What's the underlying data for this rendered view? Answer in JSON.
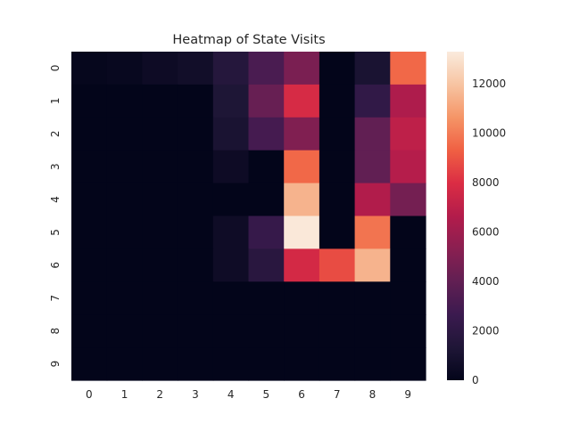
{
  "chart_data": {
    "type": "heatmap",
    "title": "Heatmap of State Visits",
    "xlabel": "",
    "ylabel": "",
    "x_categories": [
      "0",
      "1",
      "2",
      "3",
      "4",
      "5",
      "6",
      "7",
      "8",
      "9"
    ],
    "y_categories": [
      "0",
      "1",
      "2",
      "3",
      "4",
      "5",
      "6",
      "7",
      "8",
      "9"
    ],
    "values": [
      [
        150,
        250,
        500,
        700,
        1600,
        3200,
        4800,
        0,
        1100,
        9500
      ],
      [
        0,
        0,
        0,
        0,
        1300,
        4200,
        7800,
        0,
        2200,
        6500
      ],
      [
        0,
        0,
        0,
        0,
        1100,
        3000,
        5000,
        0,
        4000,
        7000
      ],
      [
        0,
        0,
        0,
        0,
        500,
        0,
        9500,
        0,
        4000,
        6700
      ],
      [
        0,
        0,
        0,
        0,
        0,
        0,
        11500,
        0,
        6600,
        4600
      ],
      [
        0,
        0,
        0,
        0,
        550,
        2400,
        13200,
        0,
        9800,
        0
      ],
      [
        0,
        0,
        0,
        0,
        550,
        1800,
        7700,
        8800,
        11500,
        0
      ],
      [
        0,
        0,
        0,
        0,
        0,
        0,
        0,
        0,
        0,
        0
      ],
      [
        0,
        0,
        0,
        0,
        0,
        0,
        0,
        0,
        0,
        0
      ],
      [
        0,
        0,
        0,
        0,
        0,
        0,
        0,
        0,
        0,
        0
      ]
    ],
    "colorbar": {
      "range": [
        0,
        13300
      ],
      "ticks": [
        "0",
        "2000",
        "4000",
        "6000",
        "8000",
        "10000",
        "12000"
      ]
    },
    "colormap": "rocket",
    "colormap_stops": [
      "#03051a",
      "#1f1637",
      "#3b1a4f",
      "#611f53",
      "#8a1f51",
      "#b31c4b",
      "#db2d44",
      "#f06043",
      "#f59567",
      "#f7c4a2",
      "#faebdd"
    ]
  }
}
